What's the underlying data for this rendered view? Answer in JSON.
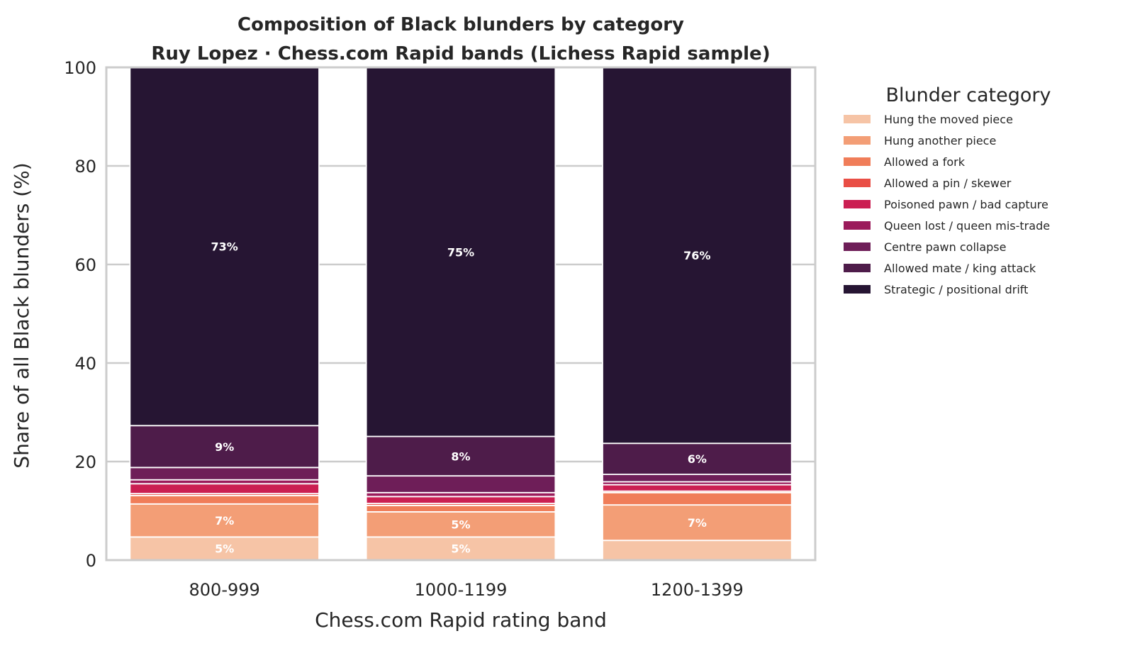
{
  "chart_data": {
    "type": "bar",
    "stacked": true,
    "title": "Composition of Black blunders by category",
    "subtitle": "Ruy Lopez · Chess.com Rapid bands (Lichess Rapid sample)",
    "xlabel": "Chess.com Rapid rating band",
    "ylabel": "Share of all Black blunders (%)",
    "ylim": [
      0,
      100
    ],
    "yticks": [
      "0",
      "20",
      "40",
      "60",
      "80",
      "100"
    ],
    "grid": true,
    "categories": [
      "800-999",
      "1000-1199",
      "1200-1399"
    ],
    "legend": {
      "title": "Blunder category",
      "placement": "outside right"
    },
    "series": [
      {
        "name": "Hung the moved piece",
        "color": "#f6c4a6",
        "values": [
          4.7,
          4.7,
          4.0
        ],
        "labels": [
          "5%",
          "5%",
          ""
        ]
      },
      {
        "name": "Hung another piece",
        "color": "#f39e76",
        "values": [
          6.7,
          5.1,
          7.2
        ],
        "labels": [
          "7%",
          "5%",
          "7%"
        ]
      },
      {
        "name": "Allowed a fork",
        "color": "#f07d59",
        "values": [
          1.7,
          1.3,
          2.5
        ],
        "labels": [
          "",
          "",
          ""
        ]
      },
      {
        "name": "Allowed a pin / skewer",
        "color": "#e94e45",
        "values": [
          0.4,
          0.4,
          0.3
        ],
        "labels": [
          "",
          "",
          ""
        ]
      },
      {
        "name": "Poisoned pawn / bad capture",
        "color": "#cb1f52",
        "values": [
          2.0,
          1.4,
          1.3
        ],
        "labels": [
          "",
          "",
          ""
        ]
      },
      {
        "name": "Queen lost / queen mis-trade",
        "color": "#9b1b5b",
        "values": [
          0.8,
          0.8,
          0.6
        ],
        "labels": [
          "",
          "",
          ""
        ]
      },
      {
        "name": "Centre pawn collapse",
        "color": "#6e1e58",
        "values": [
          2.5,
          3.4,
          1.5
        ],
        "labels": [
          "",
          "",
          ""
        ]
      },
      {
        "name": "Allowed mate / king attack",
        "color": "#4e1c4a",
        "values": [
          8.5,
          8.0,
          6.3
        ],
        "labels": [
          "9%",
          "8%",
          "6%"
        ]
      },
      {
        "name": "Strategic / positional drift",
        "color": "#261533",
        "values": [
          72.7,
          74.9,
          76.3
        ],
        "labels": [
          "73%",
          "75%",
          "76%"
        ]
      }
    ]
  }
}
